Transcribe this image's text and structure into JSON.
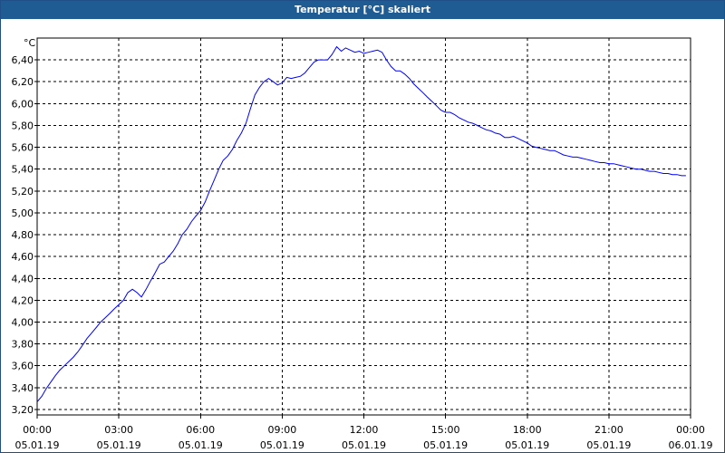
{
  "window": {
    "title": "Temperatur [°C] skaliert"
  },
  "chart_data": {
    "type": "line",
    "title": "Temperatur [°C] skaliert",
    "ylabel": "°C",
    "xlabel": "",
    "ylim": [
      3.15,
      6.6
    ],
    "xlim": [
      0,
      24
    ],
    "grid": true,
    "line_color": "#0000ff",
    "y_ticks": [
      3.2,
      3.4,
      3.6,
      3.8,
      4.0,
      4.2,
      4.4,
      4.6,
      4.8,
      5.0,
      5.2,
      5.4,
      5.6,
      5.8,
      6.0,
      6.2,
      6.4
    ],
    "y_tick_labels": [
      "3,20",
      "3,40",
      "3,60",
      "3,80",
      "4,00",
      "4,20",
      "4,40",
      "4,60",
      "4,80",
      "5,00",
      "5,20",
      "5,40",
      "5,60",
      "5,80",
      "6,00",
      "6,20",
      "6,40"
    ],
    "x_ticks": [
      0,
      3,
      6,
      9,
      12,
      15,
      18,
      21,
      24
    ],
    "x_tick_labels": [
      {
        "time": "00:00",
        "date": "05.01.19"
      },
      {
        "time": "03:00",
        "date": "05.01.19"
      },
      {
        "time": "06:00",
        "date": "05.01.19"
      },
      {
        "time": "09:00",
        "date": "05.01.19"
      },
      {
        "time": "12:00",
        "date": "05.01.19"
      },
      {
        "time": "15:00",
        "date": "05.01.19"
      },
      {
        "time": "18:00",
        "date": "05.01.19"
      },
      {
        "time": "21:00",
        "date": "05.01.19"
      },
      {
        "time": "00:00",
        "date": "06.01.19"
      }
    ],
    "series": [
      {
        "x": [
          0.0,
          0.17,
          0.33,
          0.5,
          0.67,
          0.83,
          1.0,
          1.17,
          1.33,
          1.5,
          1.67,
          1.83,
          2.0,
          2.17,
          2.33,
          2.5,
          2.67,
          2.83,
          3.0,
          3.17,
          3.33,
          3.5,
          3.67,
          3.83,
          4.0,
          4.17,
          4.33,
          4.5,
          4.67,
          4.83,
          5.0,
          5.17,
          5.33,
          5.5,
          5.67,
          5.83,
          6.0,
          6.17,
          6.33,
          6.5,
          6.67,
          6.83,
          7.0,
          7.17,
          7.33,
          7.5,
          7.67,
          7.83,
          8.0,
          8.17,
          8.33,
          8.5,
          8.67,
          8.83,
          9.0,
          9.17,
          9.33,
          9.5,
          9.67,
          9.83,
          10.0,
          10.17,
          10.33,
          10.5,
          10.67,
          10.83,
          11.0,
          11.17,
          11.33,
          11.5,
          11.67,
          11.83,
          12.0,
          12.17,
          12.33,
          12.5,
          12.67,
          12.83,
          13.0,
          13.17,
          13.33,
          13.5,
          13.67,
          13.83,
          14.0,
          14.17,
          14.33,
          14.5,
          14.67,
          14.83,
          15.0,
          15.17,
          15.33,
          15.5,
          15.67,
          15.83,
          16.0,
          16.17,
          16.33,
          16.5,
          16.67,
          16.83,
          17.0,
          17.17,
          17.33,
          17.5,
          17.67,
          17.83,
          18.0,
          18.17,
          18.33,
          18.5,
          18.67,
          18.83,
          19.0,
          19.17,
          19.33,
          19.5,
          19.67,
          19.83,
          20.0,
          20.17,
          20.33,
          20.5,
          20.67,
          20.83,
          21.0,
          21.17,
          21.33,
          21.5,
          21.67,
          21.83,
          22.0,
          22.17,
          22.33,
          22.5,
          22.67,
          22.83,
          23.0,
          23.17,
          23.33,
          23.5,
          23.67,
          23.83
        ],
        "y": [
          3.27,
          3.32,
          3.39,
          3.45,
          3.51,
          3.56,
          3.6,
          3.64,
          3.68,
          3.73,
          3.79,
          3.85,
          3.9,
          3.95,
          4.0,
          4.04,
          4.08,
          4.12,
          4.16,
          4.2,
          4.27,
          4.3,
          4.27,
          4.23,
          4.3,
          4.38,
          4.45,
          4.53,
          4.55,
          4.6,
          4.65,
          4.72,
          4.8,
          4.85,
          4.92,
          4.97,
          5.02,
          5.1,
          5.2,
          5.3,
          5.4,
          5.48,
          5.52,
          5.58,
          5.66,
          5.73,
          5.82,
          5.95,
          6.08,
          6.15,
          6.2,
          6.23,
          6.2,
          6.17,
          6.19,
          6.24,
          6.23,
          6.24,
          6.25,
          6.28,
          6.33,
          6.38,
          6.4,
          6.4,
          6.4,
          6.45,
          6.52,
          6.48,
          6.51,
          6.49,
          6.47,
          6.48,
          6.46,
          6.47,
          6.48,
          6.49,
          6.47,
          6.4,
          6.34,
          6.3,
          6.3,
          6.27,
          6.23,
          6.18,
          6.14,
          6.1,
          6.06,
          6.02,
          5.98,
          5.94,
          5.92,
          5.92,
          5.9,
          5.87,
          5.85,
          5.83,
          5.82,
          5.8,
          5.78,
          5.76,
          5.75,
          5.73,
          5.72,
          5.69,
          5.69,
          5.7,
          5.68,
          5.66,
          5.64,
          5.61,
          5.6,
          5.59,
          5.58,
          5.57,
          5.57,
          5.55,
          5.53,
          5.52,
          5.51,
          5.51,
          5.5,
          5.49,
          5.48,
          5.47,
          5.46,
          5.46,
          5.45,
          5.45,
          5.44,
          5.43,
          5.42,
          5.41,
          5.4,
          5.4,
          5.39,
          5.38,
          5.38,
          5.37,
          5.36,
          5.36,
          5.35,
          5.35,
          5.34,
          5.34
        ]
      }
    ]
  }
}
